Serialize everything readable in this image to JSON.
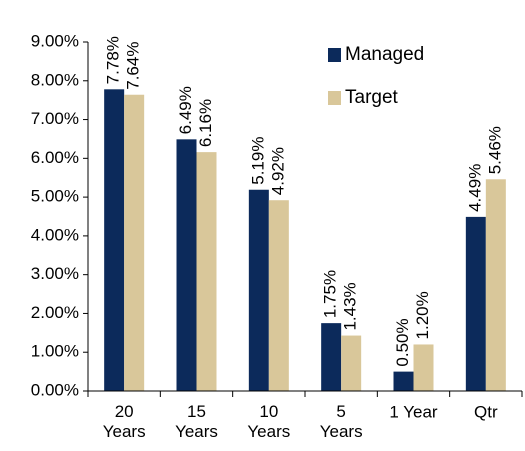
{
  "chart_data": {
    "type": "bar",
    "categories": [
      "20\nYears",
      "15\nYears",
      "10\nYears",
      "5\nYears",
      "1 Year",
      "Qtr"
    ],
    "series": [
      {
        "name": "Managed",
        "color": "#0c2a5b",
        "values": [
          7.78,
          6.49,
          5.19,
          1.75,
          0.5,
          4.49
        ],
        "value_labels": [
          "7.78%",
          "6.49%",
          "5.19%",
          "1.75%",
          "0.50%",
          "4.49%"
        ]
      },
      {
        "name": "Target",
        "color": "#d9c79a",
        "values": [
          7.64,
          6.16,
          4.92,
          1.43,
          1.2,
          5.46
        ],
        "value_labels": [
          "7.64%",
          "6.16%",
          "4.92%",
          "1.43%",
          "1.20%",
          "5.46%"
        ]
      }
    ],
    "ylim": [
      0,
      9
    ],
    "yticks": [
      {
        "value": 0,
        "label": "0.00%"
      },
      {
        "value": 1,
        "label": "1.00%"
      },
      {
        "value": 2,
        "label": "2.00%"
      },
      {
        "value": 3,
        "label": "3.00%"
      },
      {
        "value": 4,
        "label": "4.00%"
      },
      {
        "value": 5,
        "label": "5.00%"
      },
      {
        "value": 6,
        "label": "6.00%"
      },
      {
        "value": 7,
        "label": "7.00%"
      },
      {
        "value": 8,
        "label": "8.00%"
      },
      {
        "value": 9,
        "label": "9.00%"
      }
    ],
    "grid": false,
    "legend": "top-right"
  }
}
